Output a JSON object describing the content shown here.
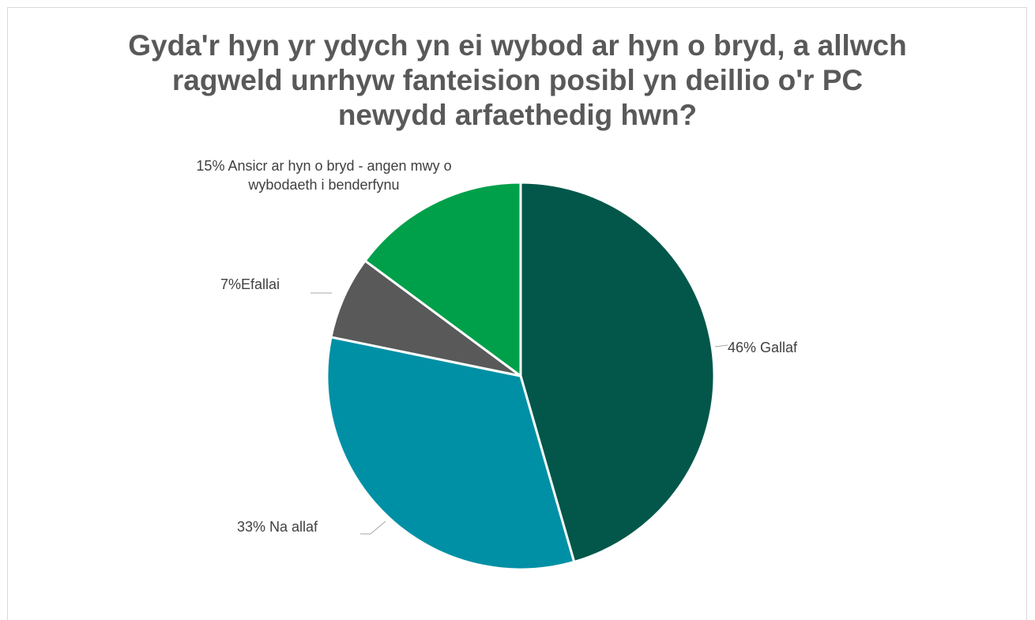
{
  "chart_data": {
    "type": "pie",
    "title_lines": [
      "Gyda'r hyn yr ydych yn ei wybod ar hyn o bryd, a allwch",
      "ragweld unrhyw fanteision posibl yn deillio o'r PC",
      "newydd arfaethedig hwn?"
    ],
    "slices": [
      {
        "label_lines": [
          "46% Gallaf"
        ],
        "value": 46,
        "color": "#02574a"
      },
      {
        "label_lines": [
          "33% Na allaf"
        ],
        "value": 33,
        "color": "#0090a5"
      },
      {
        "label_lines": [
          "7%Efallai"
        ],
        "value": 7,
        "color": "#595959"
      },
      {
        "label_lines": [
          "15% Ansicr ar hyn o bryd - angen mwy o",
          "wybodaeth i benderfynu"
        ],
        "value": 15,
        "color": "#00a04a"
      }
    ],
    "legend": "none"
  }
}
